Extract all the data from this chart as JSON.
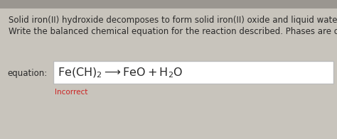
{
  "bg_color": "#c8c4bc",
  "card_color": "#eae6de",
  "line1": "Solid iron(II) hydroxide decomposes to form solid iron(II) oxide and liquid water.",
  "line2": "Write the balanced chemical equation for the reaction described. Phases are optional.",
  "equation_label": "equation:",
  "equation_text": "$\\mathrm{Fe(CH)_2 \\longrightarrow FeO + H_2O}$",
  "incorrect_label": "Incorrect",
  "incorrect_color": "#cc2222",
  "box_edge_color": "#bbbbbb",
  "box_fill_color": "#f0ede8",
  "text_color": "#2a2a2a",
  "body_fontsize": 8.5,
  "equation_fontsize": 11.5,
  "label_fontsize": 8.5,
  "incorrect_fontsize": 7.5,
  "top_gray": "#9a9690"
}
